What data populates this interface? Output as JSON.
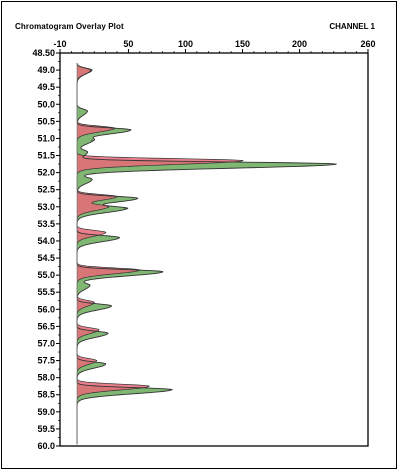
{
  "chart_data": {
    "type": "area",
    "title": "Chromatogram Overlay Plot",
    "channel": "CHANNEL 1",
    "x_axis": {
      "ticks": [
        "-10",
        "50",
        "100",
        "150",
        "200",
        "260"
      ],
      "range": [
        -10,
        260
      ],
      "position": "top"
    },
    "y_axis": {
      "ticks": [
        "48.50",
        "49.0",
        "49.5",
        "50.0",
        "50.5",
        "51.0",
        "51.5",
        "52.0",
        "52.5",
        "53.0",
        "53.5",
        "54.0",
        "54.5",
        "55.0",
        "55.5",
        "56.0",
        "56.5",
        "57.0",
        "57.5",
        "58.0",
        "58.5",
        "59.0",
        "59.5",
        "60.0"
      ],
      "range": [
        48.5,
        60.0
      ],
      "inverted": true
    },
    "baseline": 5,
    "series": [
      {
        "color": "#e86a78",
        "peaks": [
          {
            "t": 49.0,
            "v": 18
          },
          {
            "t": 50.7,
            "v": 38
          },
          {
            "t": 51.65,
            "v": 150
          },
          {
            "t": 52.7,
            "v": 40
          },
          {
            "t": 53.0,
            "v": 32
          },
          {
            "t": 53.75,
            "v": 30
          },
          {
            "t": 54.85,
            "v": 60
          },
          {
            "t": 55.8,
            "v": 20
          },
          {
            "t": 56.6,
            "v": 24
          },
          {
            "t": 57.5,
            "v": 22
          },
          {
            "t": 58.25,
            "v": 68
          }
        ]
      },
      {
        "color": "#6aaa5a",
        "peaks": [
          {
            "t": 49.0,
            "v": 17
          },
          {
            "t": 50.2,
            "v": 14
          },
          {
            "t": 50.75,
            "v": 52
          },
          {
            "t": 51.05,
            "v": 18
          },
          {
            "t": 51.4,
            "v": 14
          },
          {
            "t": 51.75,
            "v": 232
          },
          {
            "t": 52.2,
            "v": 18
          },
          {
            "t": 52.75,
            "v": 58
          },
          {
            "t": 53.05,
            "v": 47
          },
          {
            "t": 53.9,
            "v": 42
          },
          {
            "t": 54.9,
            "v": 80
          },
          {
            "t": 55.3,
            "v": 16
          },
          {
            "t": 55.9,
            "v": 35
          },
          {
            "t": 56.7,
            "v": 32
          },
          {
            "t": 57.6,
            "v": 30
          },
          {
            "t": 58.35,
            "v": 88
          }
        ]
      }
    ],
    "colors": {
      "fill_red": "#e86a78",
      "fill_green": "#6aaa5a",
      "outline": "#333333"
    }
  }
}
